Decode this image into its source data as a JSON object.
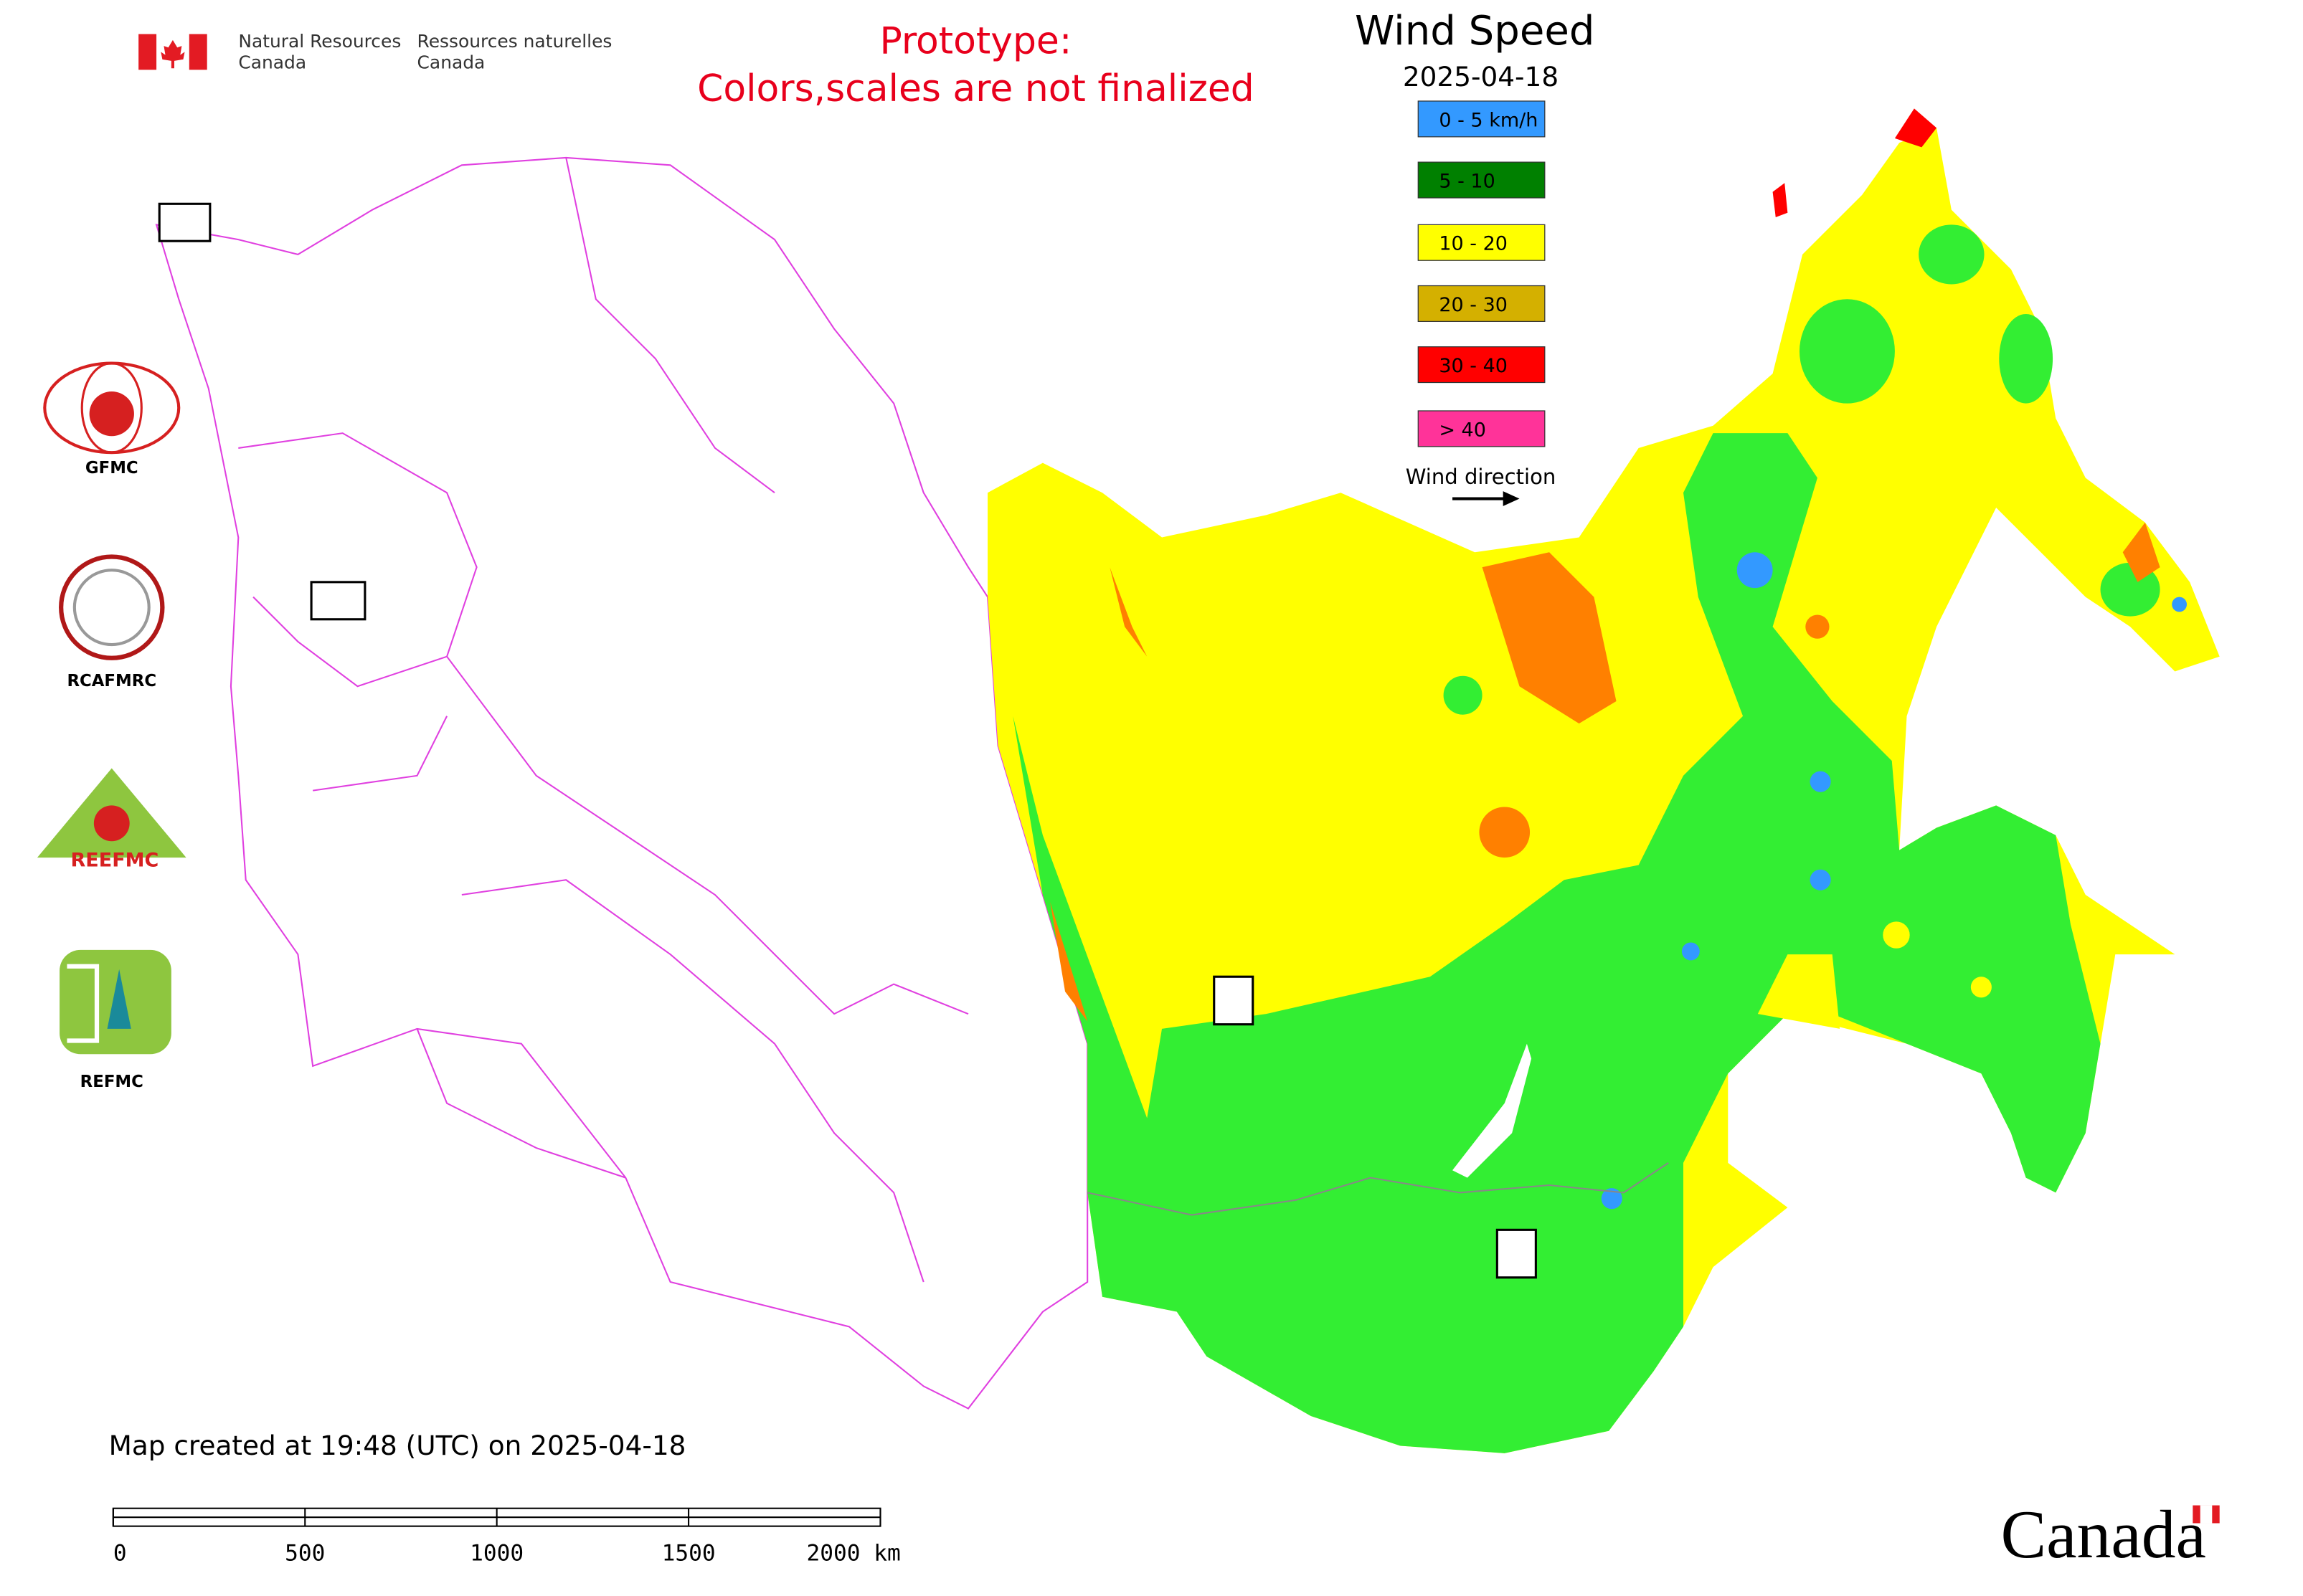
{
  "header": {
    "nrcan_en_1": "Natural Resources",
    "nrcan_en_2": "Canada",
    "nrcan_fr_1": "Ressources naturelles",
    "nrcan_fr_2": "Canada"
  },
  "notice": [
    "Prototype:",
    "Colors,scales are not finalized"
  ],
  "map": {
    "title": "Wind Speed",
    "date": "2025-04-18",
    "legend": [
      {
        "label": "0 - 5 km/h",
        "color": "#3399ff"
      },
      {
        "label": "5 - 10",
        "color": "#008000"
      },
      {
        "label": "10 - 20",
        "color": "#ffff00"
      },
      {
        "label": "20 - 30",
        "color": "#d4b000"
      },
      {
        "label": "30 - 40",
        "color": "#ff0000"
      },
      {
        "label": "> 40",
        "color": "#ff3399"
      }
    ],
    "wind_direction_label": "Wind direction"
  },
  "logos": [
    "GFMC",
    "RCAFMRC",
    "REEFMC",
    "REFMC"
  ],
  "footer": {
    "created": "Map created at 19:48 (UTC) on 2025-04-18",
    "scale_labels": [
      "0",
      "500",
      "1000",
      "1500",
      "2000 km"
    ],
    "wordmark": "Canada"
  }
}
